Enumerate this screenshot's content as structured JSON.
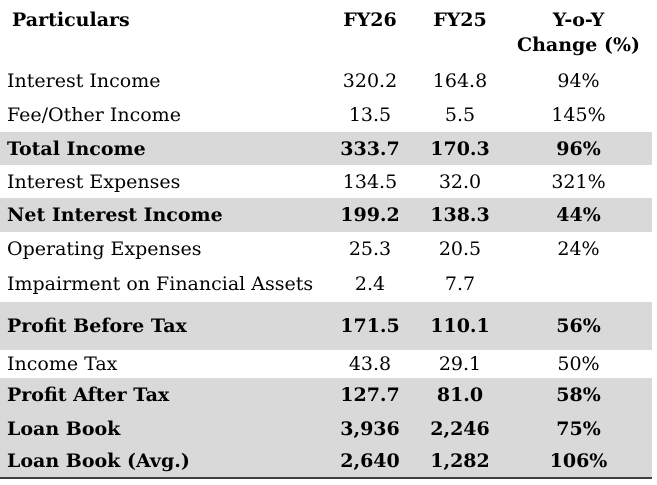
{
  "table": {
    "columns": {
      "particulars": {
        "label": "Particulars"
      },
      "fy26": {
        "label": "FY26"
      },
      "fy25": {
        "label": "FY25"
      },
      "yoy": {
        "label_line1": "Y-o-Y",
        "label_line2": "Change (%)"
      }
    },
    "rows": [
      {
        "particulars": "Interest Income",
        "fy26": "320.2",
        "fy25": "164.8",
        "yoy": "94%",
        "highlight": false
      },
      {
        "particulars": "Fee/Other Income",
        "fy26": "13.5",
        "fy25": "5.5",
        "yoy": "145%",
        "highlight": false
      },
      {
        "particulars": "Total Income",
        "fy26": "333.7",
        "fy25": "170.3",
        "yoy": "96%",
        "highlight": true
      },
      {
        "particulars": "Interest Expenses",
        "fy26": "134.5",
        "fy25": "32.0",
        "yoy": "321%",
        "highlight": false
      },
      {
        "particulars": "Net Interest Income",
        "fy26": "199.2",
        "fy25": "138.3",
        "yoy": "44%",
        "highlight": true
      },
      {
        "particulars": "Operating Expenses",
        "fy26": "25.3",
        "fy25": "20.5",
        "yoy": "24%",
        "highlight": false
      },
      {
        "particulars": "Impairment on Financial Assets",
        "fy26": "2.4",
        "fy25": "7.7",
        "yoy": "",
        "highlight": false
      },
      {
        "particulars": "Profit Before Tax",
        "fy26": "171.5",
        "fy25": "110.1",
        "yoy": "56%",
        "highlight": true
      },
      {
        "particulars": "Income Tax",
        "fy26": "43.8",
        "fy25": "29.1",
        "yoy": "50%",
        "highlight": false
      },
      {
        "particulars": "Profit After Tax",
        "fy26": "127.7",
        "fy25": "81.0",
        "yoy": "58%",
        "highlight": true
      },
      {
        "particulars": "Loan Book",
        "fy26": "3,936",
        "fy25": "2,246",
        "yoy": "75%",
        "highlight": true
      },
      {
        "particulars": "Loan Book (Avg.)",
        "fy26": "2,640",
        "fy25": "1,282",
        "yoy": "106%",
        "highlight": true
      }
    ]
  },
  "colors": {
    "highlight_row_background": "#d9d9d9",
    "text": "#000000",
    "bottom_border": "#3f3f3f",
    "page_background": "#ffffff"
  }
}
